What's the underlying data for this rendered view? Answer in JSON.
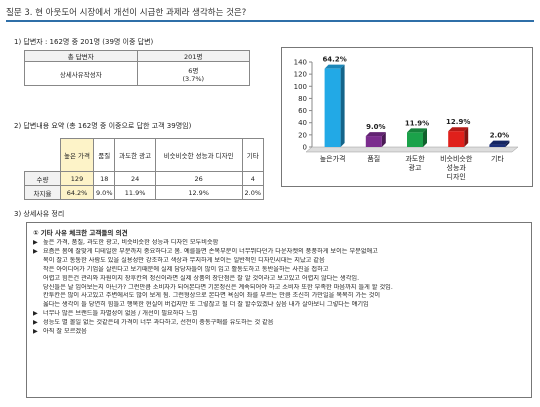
{
  "question": "질문 3. 현 아웃도어 시장에서 개선이 시급한 과제라 생각하는 것은?",
  "section1": {
    "heading": "1) 답변자 : 162명 중 201명 (39명 이중 답변)",
    "table": {
      "header": [
        "총 답변자",
        "201명"
      ],
      "row_label": "상세사유작성자",
      "row_value": "6명",
      "row_pct": "(3.7%)"
    }
  },
  "section2": {
    "heading": "2) 답변내용 요약 (총 162명 중 이중으로 답한 고객 39명임)",
    "columns": [
      "높은 가격",
      "품질",
      "과도한 광고",
      "비슷비슷한 성능과 디자인",
      "기타"
    ],
    "rows": [
      {
        "label": "수량",
        "values": [
          "129",
          "18",
          "24",
          "26",
          "4"
        ]
      },
      {
        "label": "차지율",
        "values": [
          "64.2%",
          "9.0%",
          "11.9%",
          "12.9%",
          "2.0%"
        ]
      }
    ]
  },
  "section3": {
    "heading": "3) 상세사유 정리",
    "title": "① 기타 사유 체크한 고객들의 의견",
    "lines": [
      {
        "bullet": "▶",
        "text": "높은 가격, 품질, 과도한 광고, 비슷비슷한 성능과 디자인 모두비슷함"
      },
      {
        "bullet": "▶",
        "text": "요즘은 몸에 잘맞게 디테일한 부분까지 중요하다고 봄. 예를들면 손목부분이 너무뛰다던가 다운자켓의 풍풍하게 보이는 부분없애고"
      },
      {
        "bullet": "",
        "text": "목이 잘고 통통한 사람도 있을 실용성만 강조하고 색상과 무지하게 보이는 일반적인 디자인시대는 지났고 같음"
      },
      {
        "bullet": "",
        "text": "작은 아이디어가 기업을 살린다고 보기때문에 실제 담당자들이 많이 입고 활동도하고 동반을하는 사진을 접하고"
      },
      {
        "bullet": "",
        "text": "어렵고 힘든건 관리와 자원이지 장후칸의 정신이라면 실제 상품의 장단점은 잘 알 것이라고 보고있고 어렵지 않다는 생각임."
      },
      {
        "bullet": "",
        "text": "당신들은 날 입어보는지 아닌가? 그런만큼 소비자가 되어본다면 기본정신은 계속되어야 하고 소비자 또한 부족한 마음까지 들게 할 것임."
      },
      {
        "bullet": "",
        "text": "칸투칸은 많이 사고있고 주변에서도 많이 보게 됨. 그런형상으로 본다면 욕심이 좌를 부르는 만큼 조신히 가만일을 목목히 가는 것이"
      },
      {
        "bullet": "",
        "text": "옳다는 생각이 들 당연히 힘들고 행복한 현실이 버겁지만 또 그렇잖고 될 더 잘 할수있겠냐 싶음 내가 살아보니 그렇다는 얘기임"
      },
      {
        "bullet": "▶",
        "text": "너무나 많은 브랜드들 차별성이 없음 / 개선이 필요하다 느낌"
      },
      {
        "bullet": "▶",
        "text": "성능도 별 볼일 없는 것같은데 가격이 너무 과다하고, 선전이 충동구매를 유도하는 것 같음"
      },
      {
        "bullet": "▶",
        "text": "아직 잘 모르겠음"
      }
    ]
  },
  "chart_data": {
    "type": "bar",
    "categories": [
      "높은가격",
      "품질",
      "과도한 광고",
      "비슷비슷한 성능과 디자인",
      "기타"
    ],
    "category_lines": [
      [
        "높은가격"
      ],
      [
        "품질"
      ],
      [
        "과도한",
        "광고"
      ],
      [
        "비슷비슷한",
        "성능과",
        "디자인"
      ],
      [
        "기타"
      ]
    ],
    "values": [
      129,
      18,
      24,
      26,
      4
    ],
    "labels": [
      "64.2%",
      "9.0%",
      "11.9%",
      "12.9%",
      "2.0%"
    ],
    "colors": [
      "#22a9e6",
      "#7b2d8e",
      "#1ba24a",
      "#e0201b",
      "#1c2f7a"
    ],
    "yticks": [
      "0",
      "20",
      "40",
      "60",
      "80",
      "100",
      "120",
      "140"
    ],
    "ylim": [
      0,
      140
    ],
    "grid": false,
    "bar_style": "3d"
  }
}
